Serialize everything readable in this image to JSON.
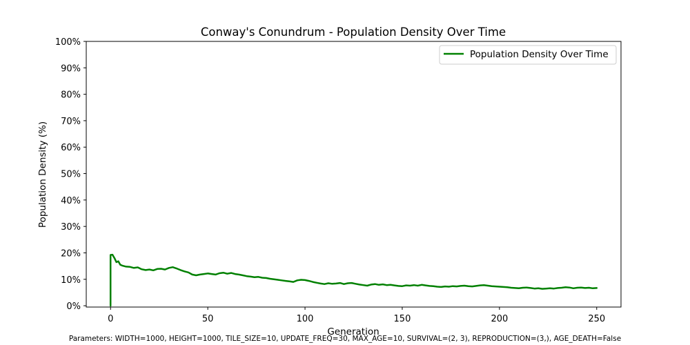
{
  "chart_data": {
    "type": "line",
    "title": "Conway's Conundrum - Population Density Over Time",
    "xlabel": "Generation",
    "ylabel": "Population Density (%)",
    "xlim": [
      -12.5,
      262.5
    ],
    "ylim": [
      -0.5,
      100
    ],
    "xticks": [
      0,
      50,
      100,
      150,
      200,
      250
    ],
    "yticks": [
      0,
      10,
      20,
      30,
      40,
      50,
      60,
      70,
      80,
      90,
      100
    ],
    "ytick_labels": [
      "0%",
      "10%",
      "20%",
      "30%",
      "40%",
      "50%",
      "60%",
      "70%",
      "80%",
      "90%",
      "100%"
    ],
    "grid": false,
    "legend": "top-right",
    "line_color": "#008000",
    "series": [
      {
        "name": "Population Density Over Time",
        "x": [
          0,
          0,
          1,
          2,
          3,
          4,
          5,
          6,
          8,
          10,
          12,
          14,
          16,
          18,
          20,
          22,
          24,
          26,
          28,
          30,
          32,
          34,
          36,
          38,
          40,
          42,
          44,
          46,
          48,
          50,
          52,
          54,
          56,
          58,
          60,
          62,
          64,
          66,
          68,
          70,
          72,
          74,
          76,
          78,
          80,
          82,
          84,
          86,
          88,
          90,
          92,
          94,
          96,
          98,
          100,
          102,
          104,
          106,
          108,
          110,
          112,
          114,
          116,
          118,
          120,
          122,
          124,
          126,
          128,
          130,
          132,
          134,
          136,
          138,
          140,
          142,
          144,
          146,
          148,
          150,
          152,
          154,
          156,
          158,
          160,
          162,
          164,
          166,
          168,
          170,
          172,
          174,
          176,
          178,
          180,
          182,
          184,
          186,
          188,
          190,
          192,
          194,
          196,
          198,
          200,
          202,
          204,
          206,
          208,
          210,
          212,
          214,
          216,
          218,
          220,
          222,
          224,
          226,
          228,
          230,
          232,
          234,
          236,
          238,
          240,
          242,
          244,
          246,
          248,
          250
        ],
        "values": [
          0,
          19.2,
          19.3,
          18.0,
          16.5,
          16.8,
          15.5,
          15.2,
          14.8,
          14.7,
          14.3,
          14.5,
          13.8,
          13.5,
          13.7,
          13.4,
          13.9,
          14.0,
          13.7,
          14.3,
          14.6,
          14.1,
          13.5,
          13.0,
          12.6,
          11.8,
          11.5,
          11.8,
          12.0,
          12.2,
          12.0,
          11.8,
          12.3,
          12.5,
          12.1,
          12.4,
          12.0,
          11.8,
          11.5,
          11.2,
          11.0,
          10.8,
          10.9,
          10.6,
          10.5,
          10.2,
          10.0,
          9.8,
          9.6,
          9.4,
          9.2,
          9.0,
          9.6,
          9.8,
          9.7,
          9.4,
          9.0,
          8.7,
          8.4,
          8.2,
          8.5,
          8.3,
          8.4,
          8.6,
          8.2,
          8.5,
          8.6,
          8.3,
          8.0,
          7.8,
          7.6,
          8.0,
          8.2,
          7.9,
          8.1,
          7.8,
          7.9,
          7.7,
          7.5,
          7.4,
          7.7,
          7.6,
          7.8,
          7.6,
          7.9,
          7.7,
          7.5,
          7.4,
          7.2,
          7.1,
          7.3,
          7.2,
          7.4,
          7.3,
          7.5,
          7.6,
          7.4,
          7.3,
          7.5,
          7.7,
          7.8,
          7.6,
          7.4,
          7.3,
          7.2,
          7.1,
          7.0,
          6.8,
          6.7,
          6.6,
          6.8,
          6.9,
          6.7,
          6.5,
          6.6,
          6.4,
          6.5,
          6.6,
          6.5,
          6.7,
          6.8,
          7.0,
          6.9,
          6.6,
          6.8,
          6.9,
          6.7,
          6.8,
          6.6,
          6.7
        ]
      }
    ]
  },
  "footer": {
    "text": "Parameters: WIDTH=1000, HEIGHT=1000, TILE_SIZE=10, UPDATE_FREQ=30, MAX_AGE=10, SURVIVAL=(2, 3), REPRODUCTION=(3,), AGE_DEATH=False"
  }
}
